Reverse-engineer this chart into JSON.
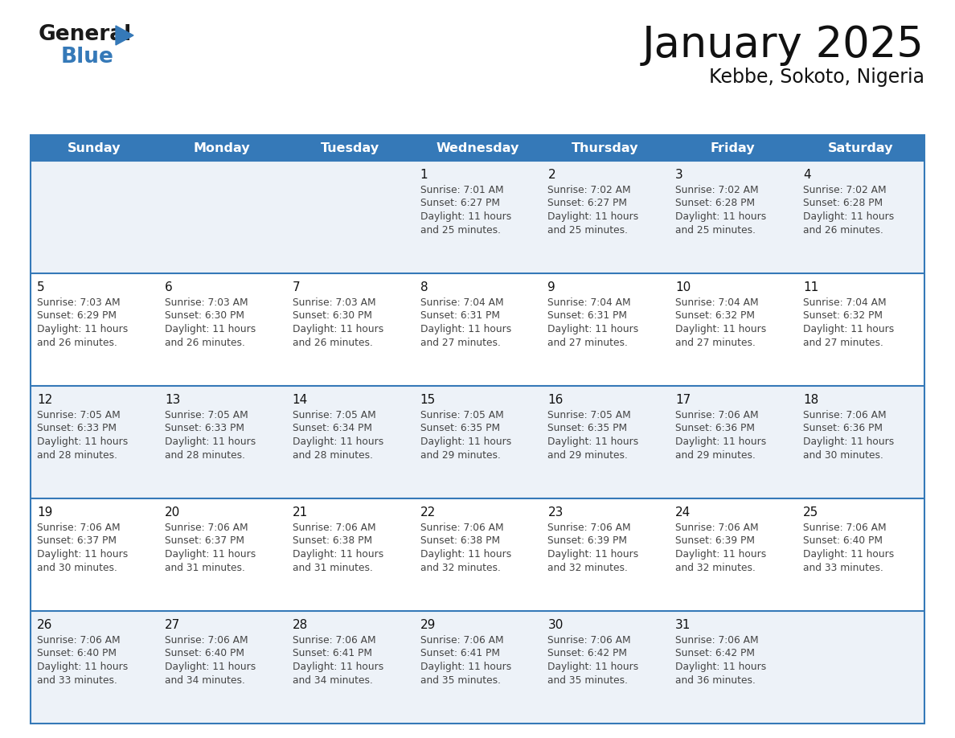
{
  "title": "January 2025",
  "subtitle": "Kebbe, Sokoto, Nigeria",
  "header_color": "#3579b8",
  "header_text_color": "#ffffff",
  "cell_bg_even": "#edf2f8",
  "cell_bg_odd": "#ffffff",
  "border_color": "#3579b8",
  "text_color": "#333333",
  "day_headers": [
    "Sunday",
    "Monday",
    "Tuesday",
    "Wednesday",
    "Thursday",
    "Friday",
    "Saturday"
  ],
  "weeks": [
    [
      {
        "day": "",
        "sunrise": "",
        "sunset": "",
        "daylight": ""
      },
      {
        "day": "",
        "sunrise": "",
        "sunset": "",
        "daylight": ""
      },
      {
        "day": "",
        "sunrise": "",
        "sunset": "",
        "daylight": ""
      },
      {
        "day": "1",
        "sunrise": "7:01 AM",
        "sunset": "6:27 PM",
        "daylight": "11 hours and 25 minutes."
      },
      {
        "day": "2",
        "sunrise": "7:02 AM",
        "sunset": "6:27 PM",
        "daylight": "11 hours and 25 minutes."
      },
      {
        "day": "3",
        "sunrise": "7:02 AM",
        "sunset": "6:28 PM",
        "daylight": "11 hours and 25 minutes."
      },
      {
        "day": "4",
        "sunrise": "7:02 AM",
        "sunset": "6:28 PM",
        "daylight": "11 hours and 26 minutes."
      }
    ],
    [
      {
        "day": "5",
        "sunrise": "7:03 AM",
        "sunset": "6:29 PM",
        "daylight": "11 hours and 26 minutes."
      },
      {
        "day": "6",
        "sunrise": "7:03 AM",
        "sunset": "6:30 PM",
        "daylight": "11 hours and 26 minutes."
      },
      {
        "day": "7",
        "sunrise": "7:03 AM",
        "sunset": "6:30 PM",
        "daylight": "11 hours and 26 minutes."
      },
      {
        "day": "8",
        "sunrise": "7:04 AM",
        "sunset": "6:31 PM",
        "daylight": "11 hours and 27 minutes."
      },
      {
        "day": "9",
        "sunrise": "7:04 AM",
        "sunset": "6:31 PM",
        "daylight": "11 hours and 27 minutes."
      },
      {
        "day": "10",
        "sunrise": "7:04 AM",
        "sunset": "6:32 PM",
        "daylight": "11 hours and 27 minutes."
      },
      {
        "day": "11",
        "sunrise": "7:04 AM",
        "sunset": "6:32 PM",
        "daylight": "11 hours and 27 minutes."
      }
    ],
    [
      {
        "day": "12",
        "sunrise": "7:05 AM",
        "sunset": "6:33 PM",
        "daylight": "11 hours and 28 minutes."
      },
      {
        "day": "13",
        "sunrise": "7:05 AM",
        "sunset": "6:33 PM",
        "daylight": "11 hours and 28 minutes."
      },
      {
        "day": "14",
        "sunrise": "7:05 AM",
        "sunset": "6:34 PM",
        "daylight": "11 hours and 28 minutes."
      },
      {
        "day": "15",
        "sunrise": "7:05 AM",
        "sunset": "6:35 PM",
        "daylight": "11 hours and 29 minutes."
      },
      {
        "day": "16",
        "sunrise": "7:05 AM",
        "sunset": "6:35 PM",
        "daylight": "11 hours and 29 minutes."
      },
      {
        "day": "17",
        "sunrise": "7:06 AM",
        "sunset": "6:36 PM",
        "daylight": "11 hours and 29 minutes."
      },
      {
        "day": "18",
        "sunrise": "7:06 AM",
        "sunset": "6:36 PM",
        "daylight": "11 hours and 30 minutes."
      }
    ],
    [
      {
        "day": "19",
        "sunrise": "7:06 AM",
        "sunset": "6:37 PM",
        "daylight": "11 hours and 30 minutes."
      },
      {
        "day": "20",
        "sunrise": "7:06 AM",
        "sunset": "6:37 PM",
        "daylight": "11 hours and 31 minutes."
      },
      {
        "day": "21",
        "sunrise": "7:06 AM",
        "sunset": "6:38 PM",
        "daylight": "11 hours and 31 minutes."
      },
      {
        "day": "22",
        "sunrise": "7:06 AM",
        "sunset": "6:38 PM",
        "daylight": "11 hours and 32 minutes."
      },
      {
        "day": "23",
        "sunrise": "7:06 AM",
        "sunset": "6:39 PM",
        "daylight": "11 hours and 32 minutes."
      },
      {
        "day": "24",
        "sunrise": "7:06 AM",
        "sunset": "6:39 PM",
        "daylight": "11 hours and 32 minutes."
      },
      {
        "day": "25",
        "sunrise": "7:06 AM",
        "sunset": "6:40 PM",
        "daylight": "11 hours and 33 minutes."
      }
    ],
    [
      {
        "day": "26",
        "sunrise": "7:06 AM",
        "sunset": "6:40 PM",
        "daylight": "11 hours and 33 minutes."
      },
      {
        "day": "27",
        "sunrise": "7:06 AM",
        "sunset": "6:40 PM",
        "daylight": "11 hours and 34 minutes."
      },
      {
        "day": "28",
        "sunrise": "7:06 AM",
        "sunset": "6:41 PM",
        "daylight": "11 hours and 34 minutes."
      },
      {
        "day": "29",
        "sunrise": "7:06 AM",
        "sunset": "6:41 PM",
        "daylight": "11 hours and 35 minutes."
      },
      {
        "day": "30",
        "sunrise": "7:06 AM",
        "sunset": "6:42 PM",
        "daylight": "11 hours and 35 minutes."
      },
      {
        "day": "31",
        "sunrise": "7:06 AM",
        "sunset": "6:42 PM",
        "daylight": "11 hours and 36 minutes."
      },
      {
        "day": "",
        "sunrise": "",
        "sunset": "",
        "daylight": ""
      }
    ]
  ]
}
